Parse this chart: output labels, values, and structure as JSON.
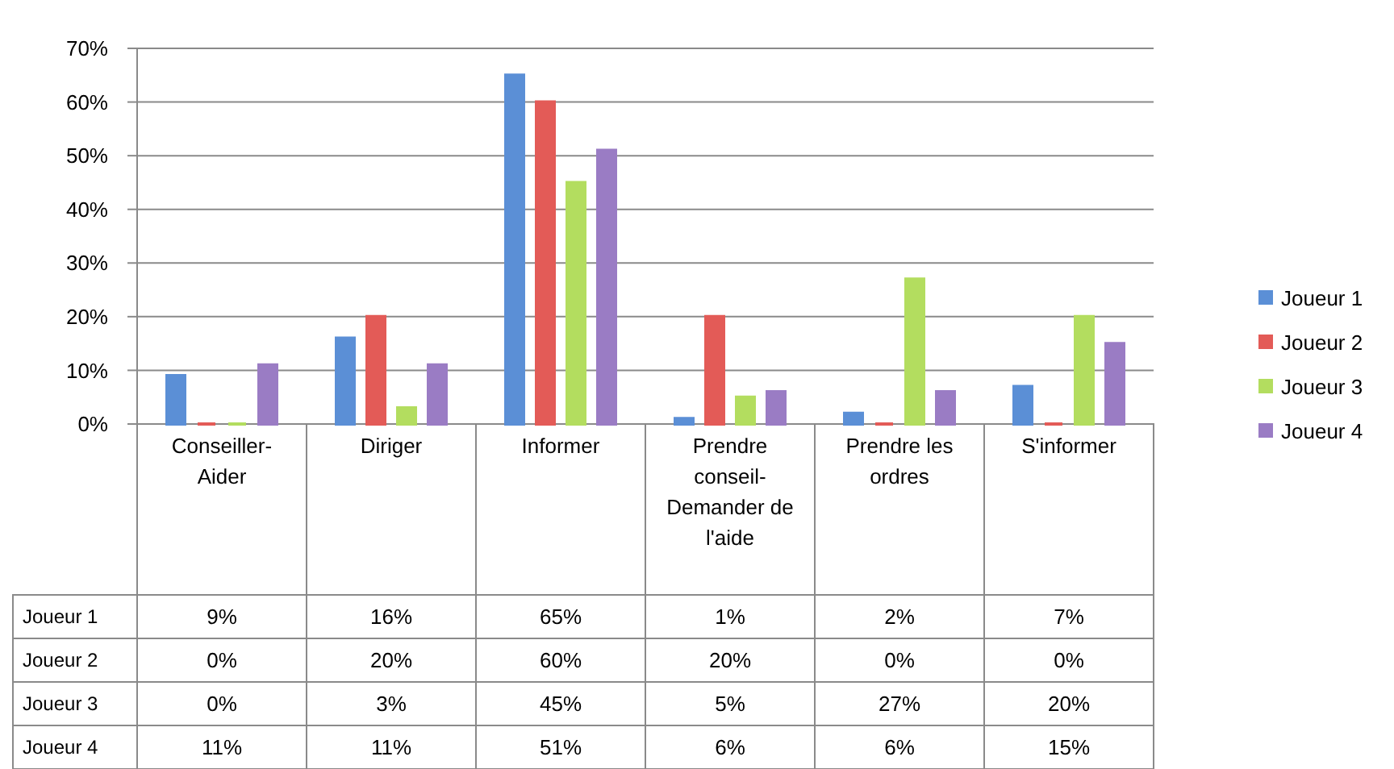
{
  "chart_data": {
    "type": "bar",
    "categories": [
      "Conseiller-Aider",
      "Diriger",
      "Informer",
      "Prendre conseil-Demander de l'aide",
      "Prendre les ordres",
      "S'informer"
    ],
    "series": [
      {
        "name": "Joueur 1",
        "color": "#5b8fd6",
        "values": [
          9,
          16,
          65,
          1,
          2,
          7
        ],
        "value_labels": [
          "9%",
          "16%",
          "65%",
          "1%",
          "2%",
          "7%"
        ]
      },
      {
        "name": "Joueur 2",
        "color": "#e35b57",
        "values": [
          0,
          20,
          60,
          20,
          0,
          0
        ],
        "value_labels": [
          "0%",
          "20%",
          "60%",
          "20%",
          "0%",
          "0%"
        ]
      },
      {
        "name": "Joueur 3",
        "color": "#b3dd5f",
        "values": [
          0,
          3,
          45,
          5,
          27,
          20
        ],
        "value_labels": [
          "0%",
          "3%",
          "45%",
          "5%",
          "27%",
          "20%"
        ]
      },
      {
        "name": "Joueur 4",
        "color": "#9a7cc4",
        "values": [
          11,
          11,
          51,
          6,
          6,
          15
        ],
        "value_labels": [
          "11%",
          "11%",
          "51%",
          "6%",
          "6%",
          "15%"
        ]
      }
    ],
    "ylim": [
      0,
      70
    ],
    "yticks": [
      {
        "value": 0,
        "label": "0%"
      },
      {
        "value": 10,
        "label": "10%"
      },
      {
        "value": 20,
        "label": "20%"
      },
      {
        "value": 30,
        "label": "30%"
      },
      {
        "value": 40,
        "label": "40%"
      },
      {
        "value": 50,
        "label": "50%"
      },
      {
        "value": 60,
        "label": "60%"
      },
      {
        "value": 70,
        "label": "70%"
      }
    ],
    "grid": "y",
    "legend": "right"
  }
}
